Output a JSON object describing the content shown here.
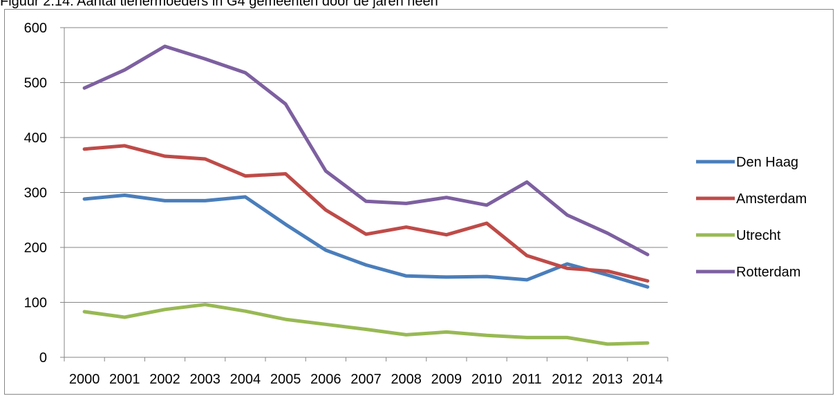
{
  "caption": "Figuur 2.14: Aantal tienermoeders in G4 gemeenten door de jaren heen",
  "colors": {
    "Den Haag": "#4a7ebb",
    "Amsterdam": "#be4b48",
    "Utrecht": "#98b954",
    "Rotterdam": "#7d60a0",
    "gridline": "#868686",
    "axis": "#868686"
  },
  "chart_data": {
    "type": "line",
    "title": "",
    "xlabel": "",
    "ylabel": "",
    "ylim": [
      0,
      600
    ],
    "yticks": [
      0,
      100,
      200,
      300,
      400,
      500,
      600
    ],
    "grid": "horizontal",
    "legend_position": "right",
    "x": [
      "2000",
      "2001",
      "2002",
      "2003",
      "2004",
      "2005",
      "2006",
      "2007",
      "2008",
      "2009",
      "2010",
      "2011",
      "2012",
      "2013",
      "2014"
    ],
    "series": [
      {
        "name": "Den Haag",
        "values": [
          288,
          295,
          285,
          285,
          292,
          242,
          195,
          168,
          148,
          146,
          147,
          141,
          170,
          150,
          128
        ]
      },
      {
        "name": "Amsterdam",
        "values": [
          379,
          385,
          366,
          361,
          330,
          334,
          268,
          224,
          237,
          223,
          244,
          185,
          162,
          157,
          139
        ]
      },
      {
        "name": "Utrecht",
        "values": [
          83,
          73,
          87,
          96,
          84,
          69,
          60,
          51,
          41,
          46,
          40,
          36,
          36,
          24,
          26
        ]
      },
      {
        "name": "Rotterdam",
        "values": [
          490,
          523,
          566,
          543,
          518,
          461,
          339,
          284,
          280,
          291,
          277,
          319,
          259,
          226,
          187
        ]
      }
    ]
  }
}
